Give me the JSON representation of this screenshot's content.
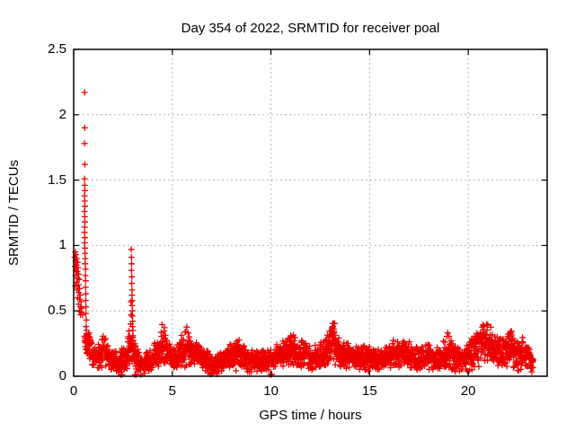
{
  "chart_data": {
    "type": "scatter",
    "title": "Day 354 of 2022, SRMTID for receiver poal",
    "xlabel": "GPS time / hours",
    "ylabel": "SRMTID / TECUs",
    "xlim": [
      0,
      24
    ],
    "ylim": [
      0,
      2.5
    ],
    "xticks": [
      0,
      5,
      10,
      15,
      20
    ],
    "xtick_labels": [
      "0",
      "5",
      "10",
      "15",
      "20"
    ],
    "yticks": [
      0,
      0.5,
      1,
      1.5,
      2,
      2.5
    ],
    "ytick_labels": [
      "0",
      "0.5",
      "1",
      "1.5",
      "2",
      "2.5"
    ],
    "grid": {
      "show": true,
      "style": "dotted",
      "color": "#b3b3b3"
    },
    "legend": "none",
    "marker": {
      "shape": "plus",
      "color": "#ee0000",
      "size": 7
    },
    "series_name": "SRMTID for receiver poal",
    "points": {
      "start_cluster": [
        [
          0.08,
          0.95
        ],
        [
          0.12,
          0.93
        ],
        [
          0.05,
          0.91
        ],
        [
          0.15,
          0.9
        ],
        [
          0.1,
          0.88
        ],
        [
          0.2,
          0.87
        ],
        [
          0.14,
          0.85
        ],
        [
          0.07,
          0.84
        ],
        [
          0.22,
          0.83
        ],
        [
          0.12,
          0.81
        ],
        [
          0.18,
          0.8
        ],
        [
          0.25,
          0.78
        ],
        [
          0.1,
          0.77
        ],
        [
          0.2,
          0.75
        ],
        [
          0.28,
          0.74
        ],
        [
          0.15,
          0.72
        ],
        [
          0.24,
          0.7
        ],
        [
          0.08,
          0.69
        ],
        [
          0.3,
          0.67
        ],
        [
          0.18,
          0.66
        ],
        [
          0.26,
          0.64
        ],
        [
          0.33,
          0.62
        ],
        [
          0.21,
          0.6
        ],
        [
          0.3,
          0.59
        ],
        [
          0.37,
          0.57
        ],
        [
          0.25,
          0.55
        ],
        [
          0.34,
          0.53
        ],
        [
          0.41,
          0.52
        ],
        [
          0.29,
          0.5
        ],
        [
          0.38,
          0.49
        ],
        [
          0.45,
          0.47
        ],
        [
          0.35,
          0.47
        ]
      ],
      "descent_column": [
        [
          0.55,
          2.17
        ],
        [
          0.56,
          1.9
        ],
        [
          0.55,
          1.78
        ],
        [
          0.57,
          1.62
        ],
        [
          0.55,
          1.51
        ],
        [
          0.56,
          1.46
        ],
        [
          0.57,
          1.42
        ],
        [
          0.55,
          1.38
        ],
        [
          0.56,
          1.34
        ],
        [
          0.57,
          1.3
        ],
        [
          0.55,
          1.26
        ],
        [
          0.56,
          1.22
        ],
        [
          0.57,
          1.18
        ],
        [
          0.56,
          1.14
        ],
        [
          0.55,
          1.1
        ],
        [
          0.57,
          1.06
        ],
        [
          0.56,
          1.02
        ],
        [
          0.57,
          0.98
        ],
        [
          0.58,
          0.94
        ],
        [
          0.59,
          0.9
        ],
        [
          0.58,
          0.86
        ],
        [
          0.6,
          0.82
        ],
        [
          0.59,
          0.77
        ],
        [
          0.61,
          0.73
        ],
        [
          0.6,
          0.68
        ],
        [
          0.62,
          0.63
        ],
        [
          0.61,
          0.58
        ],
        [
          0.63,
          0.53
        ],
        [
          0.62,
          0.48
        ],
        [
          0.64,
          0.43
        ],
        [
          0.63,
          0.38
        ],
        [
          0.65,
          0.35
        ]
      ],
      "spike_3h": [
        [
          2.92,
          0.97
        ],
        [
          2.93,
          0.91
        ],
        [
          2.94,
          0.86
        ],
        [
          2.93,
          0.81
        ],
        [
          2.95,
          0.76
        ],
        [
          2.94,
          0.71
        ],
        [
          2.96,
          0.66
        ],
        [
          2.95,
          0.62
        ],
        [
          2.97,
          0.58
        ],
        [
          2.96,
          0.54
        ],
        [
          2.98,
          0.5
        ],
        [
          2.97,
          0.46
        ],
        [
          2.99,
          0.42
        ],
        [
          2.98,
          0.38
        ],
        [
          3.0,
          0.35
        ],
        [
          2.9,
          0.57
        ],
        [
          2.91,
          0.47
        ],
        [
          3.01,
          0.31
        ],
        [
          2.89,
          0.4
        ]
      ],
      "near_zero": [
        [
          2.38,
          0.012
        ],
        [
          2.46,
          0.012
        ],
        [
          3.1,
          0.012
        ],
        [
          3.17,
          0.012
        ],
        [
          9.98,
          0.012
        ],
        [
          10.04,
          0.015
        ]
      ]
    },
    "band": {
      "x_start": 0.55,
      "x_end": 23.3,
      "points_per_hour": 115,
      "seed": 7,
      "envelope": [
        [
          0.55,
          0.3,
          0.06
        ],
        [
          0.8,
          0.22,
          0.06
        ],
        [
          1.0,
          0.15,
          0.05
        ],
        [
          1.2,
          0.13,
          0.05
        ],
        [
          1.45,
          0.22,
          0.09
        ],
        [
          1.7,
          0.16,
          0.06
        ],
        [
          2.0,
          0.11,
          0.05
        ],
        [
          2.3,
          0.1,
          0.05
        ],
        [
          2.6,
          0.14,
          0.06
        ],
        [
          2.9,
          0.24,
          0.1
        ],
        [
          3.1,
          0.15,
          0.07
        ],
        [
          3.4,
          0.09,
          0.05
        ],
        [
          3.7,
          0.11,
          0.05
        ],
        [
          4.0,
          0.13,
          0.05
        ],
        [
          4.3,
          0.2,
          0.09
        ],
        [
          4.55,
          0.28,
          0.12
        ],
        [
          4.8,
          0.17,
          0.07
        ],
        [
          5.1,
          0.14,
          0.06
        ],
        [
          5.45,
          0.19,
          0.08
        ],
        [
          5.75,
          0.22,
          0.09
        ],
        [
          6.1,
          0.19,
          0.07
        ],
        [
          6.45,
          0.14,
          0.06
        ],
        [
          6.8,
          0.11,
          0.05
        ],
        [
          7.1,
          0.09,
          0.05
        ],
        [
          7.5,
          0.12,
          0.05
        ],
        [
          7.9,
          0.15,
          0.06
        ],
        [
          8.3,
          0.18,
          0.08
        ],
        [
          8.7,
          0.14,
          0.06
        ],
        [
          9.1,
          0.12,
          0.05
        ],
        [
          9.5,
          0.11,
          0.05
        ],
        [
          9.9,
          0.13,
          0.05
        ],
        [
          10.3,
          0.15,
          0.06
        ],
        [
          10.7,
          0.18,
          0.07
        ],
        [
          11.0,
          0.21,
          0.09
        ],
        [
          11.35,
          0.16,
          0.06
        ],
        [
          11.75,
          0.18,
          0.07
        ],
        [
          12.1,
          0.14,
          0.06
        ],
        [
          12.5,
          0.16,
          0.06
        ],
        [
          12.9,
          0.22,
          0.09
        ],
        [
          13.15,
          0.28,
          0.12
        ],
        [
          13.45,
          0.18,
          0.07
        ],
        [
          13.8,
          0.16,
          0.06
        ],
        [
          14.2,
          0.16,
          0.06
        ],
        [
          14.6,
          0.14,
          0.06
        ],
        [
          15.0,
          0.14,
          0.06
        ],
        [
          15.4,
          0.12,
          0.05
        ],
        [
          15.8,
          0.14,
          0.06
        ],
        [
          16.2,
          0.16,
          0.07
        ],
        [
          16.6,
          0.16,
          0.07
        ],
        [
          17.0,
          0.17,
          0.06
        ],
        [
          17.4,
          0.14,
          0.06
        ],
        [
          17.8,
          0.15,
          0.06
        ],
        [
          18.2,
          0.14,
          0.06
        ],
        [
          18.6,
          0.12,
          0.06
        ],
        [
          19.0,
          0.2,
          0.09
        ],
        [
          19.35,
          0.14,
          0.06
        ],
        [
          19.7,
          0.12,
          0.06
        ],
        [
          20.1,
          0.16,
          0.07
        ],
        [
          20.45,
          0.21,
          0.09
        ],
        [
          20.75,
          0.27,
          0.11
        ],
        [
          21.1,
          0.23,
          0.09
        ],
        [
          21.45,
          0.18,
          0.08
        ],
        [
          21.8,
          0.2,
          0.08
        ],
        [
          22.15,
          0.23,
          0.09
        ],
        [
          22.5,
          0.15,
          0.08
        ],
        [
          22.85,
          0.2,
          0.08
        ],
        [
          23.1,
          0.14,
          0.06
        ],
        [
          23.3,
          0.1,
          0.04
        ]
      ]
    }
  }
}
